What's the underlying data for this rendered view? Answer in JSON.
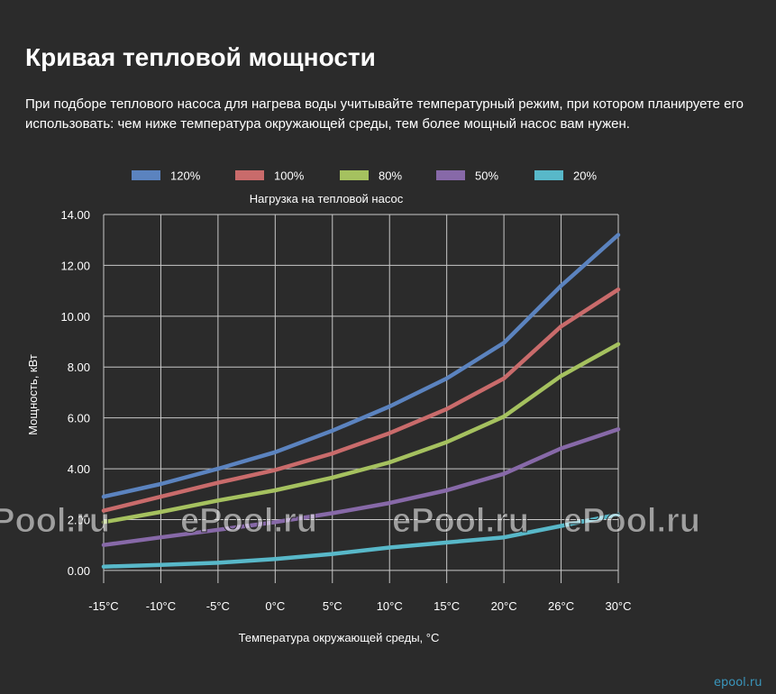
{
  "page": {
    "title": "Кривая тепловой мощности",
    "intro": "При подборе теплового насоса для нагрева воды учитывайте температурный режим, при котором планируете его использовать: чем ниже температура окружающей среды, тем более мощный насос вам нужен.",
    "watermark_text": "ePool.ru",
    "corner_watermark": "epool.ru"
  },
  "chart_data": {
    "type": "line",
    "title": "Нагрузка на тепловой насос",
    "xlabel": "Температура окружающей среды, °C",
    "ylabel": "Мощность, кВт",
    "categories": [
      "-15°C",
      "-10°C",
      "-5°C",
      "0°C",
      "5°C",
      "10°C",
      "15°C",
      "20°C",
      "26°C",
      "30°C"
    ],
    "x_values": [
      -15,
      -10,
      -5,
      0,
      5,
      10,
      15,
      20,
      26,
      30
    ],
    "ylim": [
      0,
      14
    ],
    "yticks": [
      "0.00",
      "2.00",
      "4.00",
      "6.00",
      "8.00",
      "10.00",
      "12.00",
      "14.00"
    ],
    "grid": true,
    "legend_position": "top",
    "series": [
      {
        "name": "120%",
        "color": "#5b83bf",
        "values": [
          2.9,
          3.4,
          4.0,
          4.65,
          5.5,
          6.45,
          7.55,
          8.95,
          11.2,
          13.2
        ]
      },
      {
        "name": "100%",
        "color": "#c96b6b",
        "values": [
          2.35,
          2.9,
          3.45,
          3.95,
          4.6,
          5.4,
          6.35,
          7.55,
          9.6,
          11.05
        ]
      },
      {
        "name": "80%",
        "color": "#a5c15f",
        "values": [
          1.9,
          2.3,
          2.75,
          3.15,
          3.65,
          4.25,
          5.05,
          6.05,
          7.65,
          8.9
        ]
      },
      {
        "name": "50%",
        "color": "#8769a8",
        "values": [
          1.0,
          1.3,
          1.6,
          1.9,
          2.25,
          2.65,
          3.15,
          3.8,
          4.8,
          5.55
        ]
      },
      {
        "name": "20%",
        "color": "#58b8c9",
        "values": [
          0.15,
          0.22,
          0.3,
          0.45,
          0.65,
          0.9,
          1.1,
          1.3,
          1.75,
          2.2
        ]
      }
    ]
  }
}
